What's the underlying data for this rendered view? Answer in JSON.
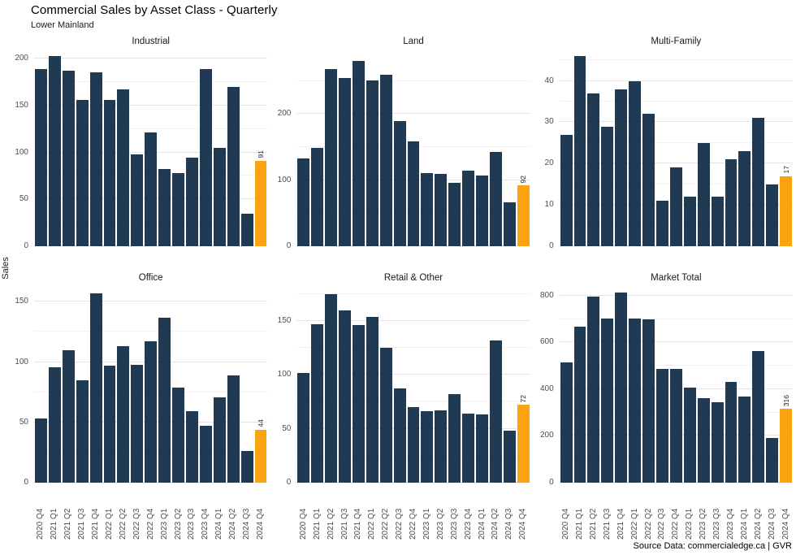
{
  "header": {
    "title": "Commercial Sales by Asset Class - Quarterly",
    "subtitle": "Lower Mainland"
  },
  "y_axis_label": "Sales",
  "footer": {
    "source": "Source Data: commercialedge.ca | GVR"
  },
  "colors": {
    "bar": "#203a54",
    "highlight": "#fca311",
    "gridline": "#e4e4e4",
    "gridline_minor": "#f2f2f2",
    "tick_text": "#4d4d4d"
  },
  "chart_data": {
    "type": "bar",
    "layout": "facet-grid 2 rows x 3 cols, free y scales",
    "title": "Commercial Sales by Asset Class - Quarterly",
    "subtitle": "Lower Mainland",
    "ylabel": "Sales",
    "grid": "major and minor horizontal gridlines, light grey",
    "categories": [
      "2020 Q4",
      "2021 Q1",
      "2021 Q2",
      "2021 Q3",
      "2021 Q4",
      "2022 Q1",
      "2022 Q2",
      "2022 Q3",
      "2022 Q4",
      "2023 Q1",
      "2023 Q2",
      "2023 Q3",
      "2023 Q4",
      "2024 Q1",
      "2024 Q2",
      "2024 Q3",
      "2024 Q4"
    ],
    "panels": [
      {
        "title": "Industrial",
        "values": [
          189,
          203,
          187,
          156,
          185,
          156,
          167,
          98,
          121,
          82,
          78,
          94,
          189,
          105,
          170,
          35,
          91
        ],
        "yticks": [
          0,
          50,
          100,
          150,
          200
        ],
        "ymax": 207,
        "highlight_index": 16,
        "highlight_label": "91"
      },
      {
        "title": "Land",
        "values": [
          133,
          149,
          268,
          255,
          280,
          251,
          259,
          190,
          159,
          111,
          110,
          96,
          114,
          107,
          143,
          66,
          92
        ],
        "yticks": [
          0,
          100,
          200
        ],
        "ymax": 294,
        "highlight_index": 16,
        "highlight_label": "92"
      },
      {
        "title": "Multi-Family",
        "values": [
          27,
          46,
          37,
          29,
          38,
          40,
          32,
          11,
          19,
          12,
          25,
          12,
          21,
          23,
          31,
          15,
          17
        ],
        "yticks": [
          0,
          10,
          20,
          30,
          40
        ],
        "ymax": 47,
        "highlight_index": 16,
        "highlight_label": "17"
      },
      {
        "title": "Office",
        "values": [
          53,
          96,
          110,
          85,
          157,
          97,
          113,
          98,
          117,
          137,
          79,
          59,
          47,
          71,
          89,
          26,
          44
        ],
        "yticks": [
          0,
          50,
          100,
          150
        ],
        "ymax": 161,
        "highlight_index": 16,
        "highlight_label": "44"
      },
      {
        "title": "Retail & Other",
        "values": [
          102,
          147,
          175,
          160,
          146,
          154,
          125,
          87,
          70,
          66,
          67,
          82,
          64,
          63,
          132,
          48,
          72
        ],
        "yticks": [
          0,
          50,
          100,
          150
        ],
        "ymax": 180,
        "highlight_index": 16,
        "highlight_label": "72"
      },
      {
        "title": "Market Total",
        "values": [
          516,
          667,
          797,
          701,
          812,
          701,
          698,
          487,
          487,
          408,
          362,
          344,
          431,
          368,
          565,
          191,
          316
        ],
        "yticks": [
          0,
          200,
          400,
          600,
          800
        ],
        "ymax": 831,
        "highlight_index": 16,
        "highlight_label": "316"
      }
    ]
  }
}
